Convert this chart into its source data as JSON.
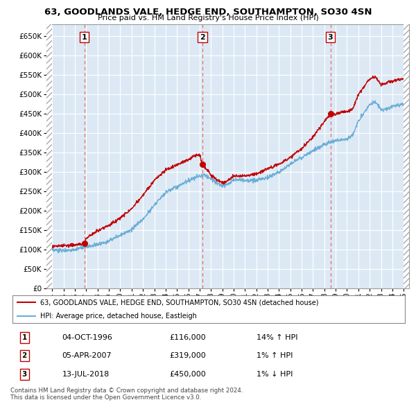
{
  "title": "63, GOODLANDS VALE, HEDGE END, SOUTHAMPTON, SO30 4SN",
  "subtitle": "Price paid vs. HM Land Registry's House Price Index (HPI)",
  "legend_entry1": "63, GOODLANDS VALE, HEDGE END, SOUTHAMPTON, SO30 4SN (detached house)",
  "legend_entry2": "HPI: Average price, detached house, Eastleigh",
  "transactions": [
    {
      "num": 1,
      "date": "04-OCT-1996",
      "price": 116000,
      "pct": "14%",
      "dir": "↑",
      "year": 1996.83
    },
    {
      "num": 2,
      "date": "05-APR-2007",
      "price": 319000,
      "pct": "1%",
      "dir": "↑",
      "year": 2007.25
    },
    {
      "num": 3,
      "date": "13-JUL-2018",
      "price": 450000,
      "pct": "1%",
      "dir": "↓",
      "year": 2018.54
    }
  ],
  "footnote1": "Contains HM Land Registry data © Crown copyright and database right 2024.",
  "footnote2": "This data is licensed under the Open Government Licence v3.0.",
  "hpi_color": "#6baed6",
  "price_color": "#c00000",
  "vline_color": "#e06060",
  "box_color": "#c00000",
  "bg_color": "#dce9f5",
  "ylim": [
    0,
    680000
  ],
  "yticks": [
    0,
    50000,
    100000,
    150000,
    200000,
    250000,
    300000,
    350000,
    400000,
    450000,
    500000,
    550000,
    600000,
    650000
  ],
  "xlim_start": 1993.5,
  "xlim_end": 2025.5,
  "xticks": [
    1994,
    1995,
    1996,
    1997,
    1998,
    1999,
    2000,
    2001,
    2002,
    2003,
    2004,
    2005,
    2006,
    2007,
    2008,
    2009,
    2010,
    2011,
    2012,
    2013,
    2014,
    2015,
    2016,
    2017,
    2018,
    2019,
    2020,
    2021,
    2022,
    2023,
    2024,
    2025
  ]
}
